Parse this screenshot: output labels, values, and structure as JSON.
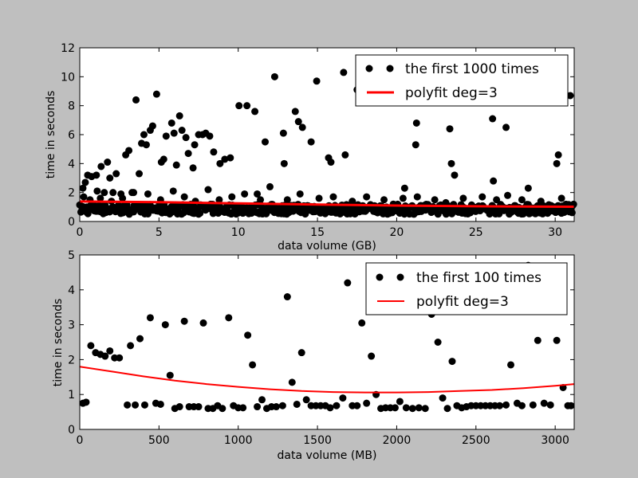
{
  "chart_data": [
    {
      "type": "scatter",
      "xlabel": "data volume (GB)",
      "ylabel": "time in seconds",
      "xlim": [
        0,
        31.2
      ],
      "ylim": [
        0,
        12
      ],
      "xticks": [
        0,
        5,
        10,
        15,
        20,
        25,
        30
      ],
      "yticks": [
        0,
        2,
        4,
        6,
        8,
        10,
        12
      ],
      "legend_position": "top-right",
      "grid": false,
      "series": [
        {
          "name": "the first 1000 times",
          "style": "points",
          "color": "#000000",
          "points": [
            [
              0.2,
              2.3
            ],
            [
              0.35,
              2.7
            ],
            [
              0.5,
              3.2
            ],
            [
              0.75,
              3.1
            ],
            [
              1.05,
              3.2
            ],
            [
              1.1,
              2.1
            ],
            [
              1.35,
              3.8
            ],
            [
              1.55,
              2.0
            ],
            [
              1.75,
              4.1
            ],
            [
              1.9,
              3.0
            ],
            [
              2.1,
              2.0
            ],
            [
              2.3,
              3.3
            ],
            [
              2.6,
              1.9
            ],
            [
              2.9,
              4.6
            ],
            [
              3.1,
              4.9
            ],
            [
              3.3,
              2.0
            ],
            [
              3.55,
              8.4
            ],
            [
              3.75,
              3.3
            ],
            [
              3.9,
              5.4
            ],
            [
              4.05,
              6.0
            ],
            [
              4.2,
              5.3
            ],
            [
              4.45,
              6.3
            ],
            [
              4.6,
              6.6
            ],
            [
              4.85,
              8.8
            ],
            [
              5.15,
              4.1
            ],
            [
              5.3,
              4.3
            ],
            [
              5.45,
              5.9
            ],
            [
              5.8,
              6.8
            ],
            [
              5.95,
              6.1
            ],
            [
              6.1,
              3.9
            ],
            [
              6.3,
              7.3
            ],
            [
              6.45,
              6.3
            ],
            [
              6.7,
              5.8
            ],
            [
              6.85,
              4.7
            ],
            [
              7.15,
              3.7
            ],
            [
              7.25,
              5.3
            ],
            [
              7.5,
              6.0
            ],
            [
              7.75,
              6.0
            ],
            [
              7.95,
              6.1
            ],
            [
              8.2,
              5.9
            ],
            [
              8.45,
              4.8
            ],
            [
              8.85,
              4.0
            ],
            [
              9.15,
              4.3
            ],
            [
              9.5,
              4.4
            ],
            [
              10.05,
              8.0
            ],
            [
              10.55,
              8.0
            ],
            [
              11.05,
              7.6
            ],
            [
              11.2,
              1.9
            ],
            [
              11.7,
              5.5
            ],
            [
              12.3,
              10.0
            ],
            [
              12.85,
              6.1
            ],
            [
              12.9,
              4.0
            ],
            [
              13.6,
              7.6
            ],
            [
              13.8,
              6.9
            ],
            [
              14.05,
              6.5
            ],
            [
              14.6,
              5.5
            ],
            [
              14.95,
              9.7
            ],
            [
              15.7,
              4.4
            ],
            [
              15.85,
              4.1
            ],
            [
              16.65,
              10.3
            ],
            [
              16.75,
              4.6
            ],
            [
              17.5,
              9.1
            ],
            [
              20.5,
              2.3
            ],
            [
              21.25,
              6.8
            ],
            [
              21.2,
              5.3
            ],
            [
              23.35,
              6.4
            ],
            [
              23.45,
              4.0
            ],
            [
              23.65,
              3.2
            ],
            [
              26.05,
              7.1
            ],
            [
              26.1,
              2.8
            ],
            [
              26.9,
              6.5
            ],
            [
              28.3,
              2.3
            ],
            [
              30.1,
              4.0
            ],
            [
              30.2,
              4.6
            ],
            [
              30.95,
              8.7
            ],
            [
              0.25,
              1.7
            ],
            [
              0.65,
              1.5
            ],
            [
              1.3,
              1.6
            ],
            [
              2.0,
              1.4
            ],
            [
              2.7,
              1.6
            ],
            [
              3.4,
              2.0
            ],
            [
              4.3,
              1.9
            ],
            [
              5.1,
              1.5
            ],
            [
              5.9,
              2.1
            ],
            [
              6.6,
              1.7
            ],
            [
              7.3,
              1.4
            ],
            [
              8.1,
              2.2
            ],
            [
              8.8,
              1.5
            ],
            [
              9.6,
              1.7
            ],
            [
              10.4,
              1.9
            ],
            [
              11.4,
              1.5
            ],
            [
              12.0,
              2.4
            ],
            [
              13.1,
              1.5
            ],
            [
              13.9,
              1.9
            ],
            [
              15.1,
              1.6
            ],
            [
              16.0,
              1.7
            ],
            [
              17.2,
              1.4
            ],
            [
              18.1,
              1.7
            ],
            [
              19.2,
              1.5
            ],
            [
              20.4,
              1.6
            ],
            [
              21.3,
              1.7
            ],
            [
              22.4,
              1.5
            ],
            [
              23.1,
              1.3
            ],
            [
              24.2,
              1.6
            ],
            [
              25.4,
              1.7
            ],
            [
              26.3,
              1.5
            ],
            [
              27.0,
              1.8
            ],
            [
              27.9,
              1.5
            ],
            [
              29.1,
              1.4
            ],
            [
              30.4,
              1.6
            ]
          ],
          "band": {
            "y_min": 0.5,
            "y_max": 1.2,
            "description": "dense cluster of points along the full x range"
          }
        },
        {
          "name": "polyfit deg=3",
          "style": "line",
          "color": "#ff0000",
          "points": [
            [
              0,
              1.38
            ],
            [
              5,
              1.33
            ],
            [
              10,
              1.25
            ],
            [
              15,
              1.17
            ],
            [
              20,
              1.1
            ],
            [
              25,
              1.05
            ],
            [
              31.2,
              1.02
            ]
          ]
        }
      ]
    },
    {
      "type": "scatter",
      "xlabel": "data volume (MB)",
      "ylabel": "time in seconds",
      "xlim": [
        0,
        3120
      ],
      "ylim": [
        0,
        5
      ],
      "xticks": [
        0,
        500,
        1000,
        1500,
        2000,
        2500,
        3000
      ],
      "yticks": [
        0,
        1,
        2,
        3,
        4,
        5
      ],
      "legend_position": "top-right",
      "grid": false,
      "series": [
        {
          "name": "the first 100 times",
          "style": "points",
          "color": "#000000",
          "points": [
            [
              20,
              0.75
            ],
            [
              40,
              0.78
            ],
            [
              70,
              2.4
            ],
            [
              100,
              2.2
            ],
            [
              130,
              2.15
            ],
            [
              160,
              2.1
            ],
            [
              190,
              2.25
            ],
            [
              220,
              2.05
            ],
            [
              250,
              2.05
            ],
            [
              300,
              0.7
            ],
            [
              320,
              2.4
            ],
            [
              350,
              0.7
            ],
            [
              380,
              2.6
            ],
            [
              410,
              0.7
            ],
            [
              445,
              3.2
            ],
            [
              480,
              0.75
            ],
            [
              510,
              0.72
            ],
            [
              540,
              3.0
            ],
            [
              570,
              1.55
            ],
            [
              600,
              0.6
            ],
            [
              630,
              0.65
            ],
            [
              660,
              3.1
            ],
            [
              690,
              0.65
            ],
            [
              720,
              0.65
            ],
            [
              750,
              0.65
            ],
            [
              780,
              3.05
            ],
            [
              810,
              0.6
            ],
            [
              840,
              0.6
            ],
            [
              870,
              0.68
            ],
            [
              900,
              0.6
            ],
            [
              940,
              3.2
            ],
            [
              970,
              0.68
            ],
            [
              1000,
              0.62
            ],
            [
              1030,
              0.62
            ],
            [
              1060,
              2.7
            ],
            [
              1090,
              1.85
            ],
            [
              1120,
              0.65
            ],
            [
              1150,
              0.85
            ],
            [
              1180,
              0.6
            ],
            [
              1210,
              0.65
            ],
            [
              1240,
              0.65
            ],
            [
              1280,
              0.68
            ],
            [
              1310,
              3.8
            ],
            [
              1340,
              1.35
            ],
            [
              1370,
              0.72
            ],
            [
              1400,
              2.2
            ],
            [
              1430,
              0.85
            ],
            [
              1460,
              0.68
            ],
            [
              1490,
              0.68
            ],
            [
              1520,
              0.68
            ],
            [
              1550,
              0.68
            ],
            [
              1580,
              0.62
            ],
            [
              1620,
              0.68
            ],
            [
              1660,
              0.9
            ],
            [
              1690,
              4.2
            ],
            [
              1720,
              0.68
            ],
            [
              1750,
              0.68
            ],
            [
              1780,
              3.05
            ],
            [
              1810,
              0.75
            ],
            [
              1840,
              2.1
            ],
            [
              1870,
              1.0
            ],
            [
              1900,
              0.6
            ],
            [
              1930,
              0.62
            ],
            [
              1960,
              0.62
            ],
            [
              1990,
              0.62
            ],
            [
              2020,
              0.8
            ],
            [
              2060,
              0.62
            ],
            [
              2100,
              0.6
            ],
            [
              2140,
              0.62
            ],
            [
              2180,
              0.6
            ],
            [
              2220,
              3.3
            ],
            [
              2260,
              2.5
            ],
            [
              2290,
              0.9
            ],
            [
              2320,
              0.6
            ],
            [
              2350,
              1.95
            ],
            [
              2380,
              0.68
            ],
            [
              2410,
              0.62
            ],
            [
              2440,
              0.65
            ],
            [
              2470,
              0.68
            ],
            [
              2500,
              0.68
            ],
            [
              2530,
              0.68
            ],
            [
              2560,
              0.68
            ],
            [
              2590,
              0.68
            ],
            [
              2620,
              0.68
            ],
            [
              2650,
              0.68
            ],
            [
              2690,
              0.7
            ],
            [
              2720,
              1.85
            ],
            [
              2760,
              0.75
            ],
            [
              2790,
              0.68
            ],
            [
              2830,
              4.7
            ],
            [
              2860,
              0.7
            ],
            [
              2890,
              2.55
            ],
            [
              2930,
              0.75
            ],
            [
              2970,
              0.7
            ],
            [
              3010,
              2.55
            ],
            [
              3050,
              1.2
            ],
            [
              3080,
              0.68
            ],
            [
              3100,
              0.68
            ]
          ]
        },
        {
          "name": "polyfit deg=3",
          "style": "line",
          "color": "#ff0000",
          "points": [
            [
              0,
              1.8
            ],
            [
              200,
              1.66
            ],
            [
              400,
              1.52
            ],
            [
              600,
              1.4
            ],
            [
              800,
              1.3
            ],
            [
              1000,
              1.22
            ],
            [
              1200,
              1.15
            ],
            [
              1400,
              1.1
            ],
            [
              1600,
              1.07
            ],
            [
              1800,
              1.06
            ],
            [
              2000,
              1.06
            ],
            [
              2200,
              1.07
            ],
            [
              2400,
              1.1
            ],
            [
              2600,
              1.13
            ],
            [
              2800,
              1.18
            ],
            [
              3000,
              1.25
            ],
            [
              3120,
              1.3
            ]
          ]
        }
      ]
    }
  ]
}
